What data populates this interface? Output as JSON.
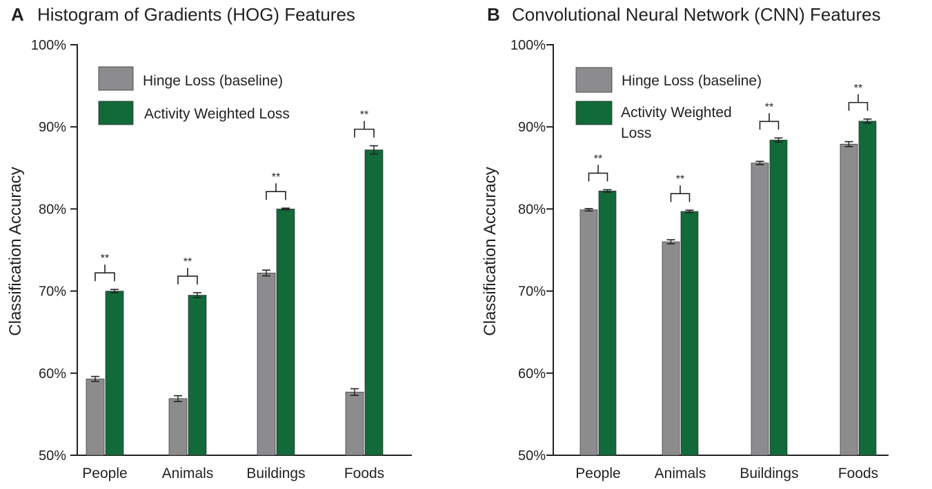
{
  "colors": {
    "baseline": "#8c8c8e",
    "weighted": "#12693a",
    "axis": "#231f20"
  },
  "chart_data": [
    {
      "type": "bar",
      "panel": "A",
      "title": "Histogram of Gradients (HOG) Features",
      "ylabel": "Classification Accuracy",
      "xlabel": "",
      "ylim": [
        50,
        100
      ],
      "yticks": [
        "50%",
        "60%",
        "70%",
        "80%",
        "90%",
        "100%"
      ],
      "categories": [
        "People",
        "Animals",
        "Buildings",
        "Foods"
      ],
      "legend": [
        "Hinge Loss (baseline)",
        "Activity Weighted Loss"
      ],
      "series": [
        {
          "name": "Hinge Loss (baseline)",
          "values": [
            59.3,
            56.9,
            72.2,
            57.7
          ],
          "errors": [
            0.3,
            0.35,
            0.35,
            0.4
          ]
        },
        {
          "name": "Activity Weighted Loss",
          "values": [
            70.0,
            69.5,
            80.0,
            87.2
          ],
          "errors": [
            0.2,
            0.3,
            0.1,
            0.5
          ]
        }
      ],
      "annotations": [
        "**",
        "**",
        "**",
        "**"
      ]
    },
    {
      "type": "bar",
      "panel": "B",
      "title": "Convolutional Neural Network (CNN) Features",
      "ylabel": "Classification Accuracy",
      "xlabel": "",
      "ylim": [
        50,
        100
      ],
      "yticks": [
        "50%",
        "60%",
        "70%",
        "80%",
        "90%",
        "100%"
      ],
      "categories": [
        "People",
        "Animals",
        "Buildings",
        "Foods"
      ],
      "legend": [
        "Hinge Loss (baseline)",
        "Activity Weighted Loss"
      ],
      "series": [
        {
          "name": "Hinge Loss (baseline)",
          "values": [
            79.9,
            76.0,
            85.6,
            87.9
          ],
          "errors": [
            0.15,
            0.25,
            0.2,
            0.3
          ]
        },
        {
          "name": "Activity Weighted Loss",
          "values": [
            82.2,
            79.7,
            88.4,
            90.7
          ],
          "errors": [
            0.15,
            0.15,
            0.25,
            0.25
          ]
        }
      ],
      "annotations": [
        "**",
        "**",
        "**",
        "**"
      ]
    }
  ]
}
